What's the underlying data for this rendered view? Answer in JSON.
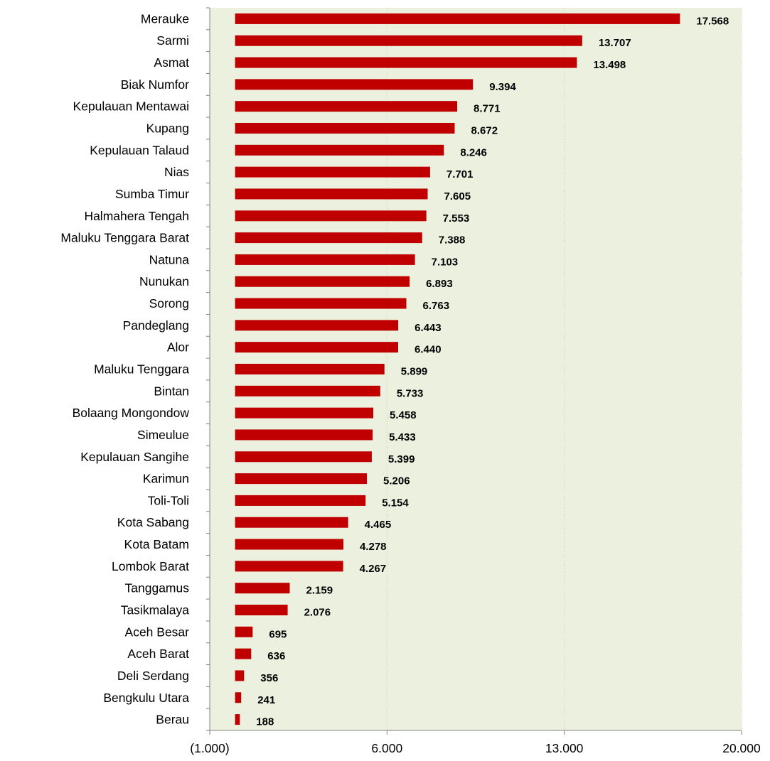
{
  "chart_data": {
    "type": "bar",
    "orientation": "horizontal",
    "categories": [
      "Merauke",
      "Sarmi",
      "Asmat",
      "Biak Numfor",
      "Kepulauan Mentawai",
      "Kupang",
      "Kepulauan Talaud",
      "Nias",
      "Sumba Timur",
      "Halmahera Tengah",
      "Maluku Tenggara Barat",
      "Natuna",
      "Nunukan",
      "Sorong",
      "Pandeglang",
      "Alor",
      "Maluku Tenggara",
      "Bintan",
      "Bolaang Mongondow",
      "Simeulue",
      "Kepulauan Sangihe",
      "Karimun",
      "Toli-Toli",
      "Kota Sabang",
      "Kota Batam",
      "Lombok Barat",
      "Tanggamus",
      "Tasikmalaya",
      "Aceh Besar",
      "Aceh Barat",
      "Deli Serdang",
      "Bengkulu Utara",
      "Berau"
    ],
    "values": [
      17568,
      13707,
      13498,
      9394,
      8771,
      8672,
      8246,
      7701,
      7605,
      7553,
      7388,
      7103,
      6893,
      6763,
      6443,
      6440,
      5899,
      5733,
      5458,
      5433,
      5399,
      5206,
      5154,
      4465,
      4278,
      4267,
      2159,
      2076,
      695,
      636,
      356,
      241,
      188
    ],
    "value_labels": [
      "17.568",
      "13.707",
      "13.498",
      "9.394",
      "8.771",
      "8.672",
      "8.246",
      "7.701",
      "7.605",
      "7.553",
      "7.388",
      "7.103",
      "6.893",
      "6.763",
      "6.443",
      "6.440",
      "5.899",
      "5.733",
      "5.458",
      "5.433",
      "5.399",
      "5.206",
      "5.154",
      "4.465",
      "4.278",
      "4.267",
      "2.159",
      "2.076",
      "695",
      "636",
      "356",
      "241",
      "188"
    ],
    "xlim": [
      -1000,
      20000
    ],
    "x_ticks": [
      -1000,
      6000,
      13000,
      20000
    ],
    "x_tick_labels": [
      "(1.000)",
      "6.000",
      "13.000",
      "20.000"
    ],
    "title": "",
    "xlabel": "",
    "ylabel": "",
    "grid": "vertical",
    "legend": "none",
    "colors": {
      "bar": "#c00000",
      "plot_background": "#ebf1de",
      "gridline": "#c4d79b",
      "axis": "#808080"
    }
  }
}
